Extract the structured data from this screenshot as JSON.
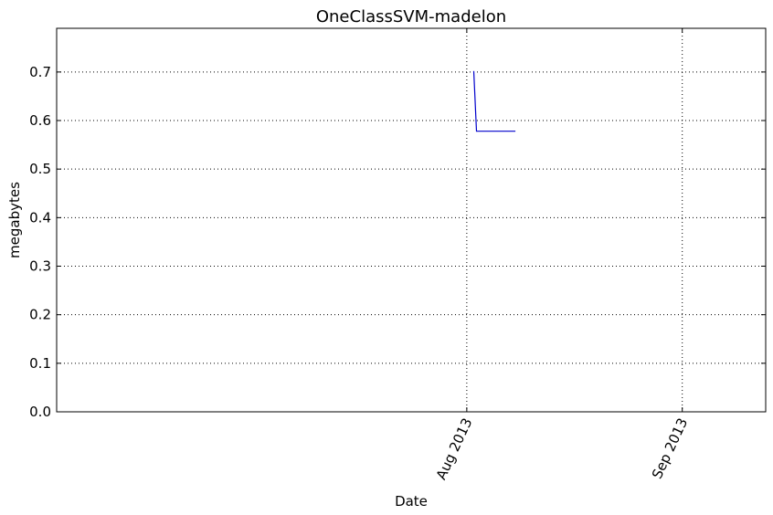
{
  "chart_data": {
    "type": "line",
    "title": "OneClassSVM-madelon",
    "xlabel": "Date",
    "ylabel": "megabytes",
    "xlim": [
      "2013-06-03",
      "2013-09-13"
    ],
    "ylim": [
      0,
      0.79
    ],
    "grid": true,
    "x_ticks": [
      {
        "date": "2013-08-01",
        "label": "Aug 2013"
      },
      {
        "date": "2013-09-01",
        "label": "Sep 2013"
      }
    ],
    "y_ticks": [
      {
        "value": 0.0,
        "label": "0.0"
      },
      {
        "value": 0.1,
        "label": "0.1"
      },
      {
        "value": 0.2,
        "label": "0.2"
      },
      {
        "value": 0.3,
        "label": "0.3"
      },
      {
        "value": 0.4,
        "label": "0.4"
      },
      {
        "value": 0.5,
        "label": "0.5"
      },
      {
        "value": 0.6,
        "label": "0.6"
      },
      {
        "value": 0.7,
        "label": "0.7"
      }
    ],
    "series": [
      {
        "color": "#0000cc",
        "x": [
          "2013-08-02",
          "2013-08-02",
          "2013-08-08"
        ],
        "y": [
          0.702,
          0.578,
          0.578
        ]
      }
    ]
  }
}
